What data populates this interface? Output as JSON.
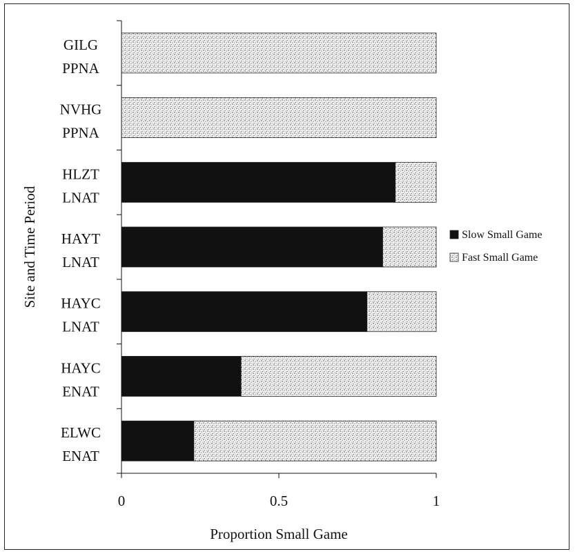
{
  "chart_data": {
    "type": "bar",
    "orientation": "horizontal",
    "stacked": true,
    "xlabel": "Proportion  Small Game",
    "ylabel": "Site and Time Period",
    "xlim": [
      0,
      1
    ],
    "xticks": [
      "0",
      "0.5",
      "1"
    ],
    "categories": [
      [
        "GILG",
        "PPNA"
      ],
      [
        "NVHG",
        "PPNA"
      ],
      [
        "HLZT",
        "LNAT"
      ],
      [
        "HAYT",
        "LNAT"
      ],
      [
        "HAYC",
        "LNAT"
      ],
      [
        "HAYC",
        "ENAT"
      ],
      [
        "ELWC",
        "ENAT"
      ]
    ],
    "series": [
      {
        "name": "Slow Small Game",
        "values": [
          0,
          0,
          0.87,
          0.83,
          0.78,
          0.38,
          0.23
        ],
        "color": "#111111"
      },
      {
        "name": "Fast Small Game",
        "values": [
          1,
          1,
          0.13,
          0.17,
          0.22,
          0.62,
          0.77
        ],
        "color": "stipple"
      }
    ],
    "legend_position": "right",
    "grid": false
  }
}
